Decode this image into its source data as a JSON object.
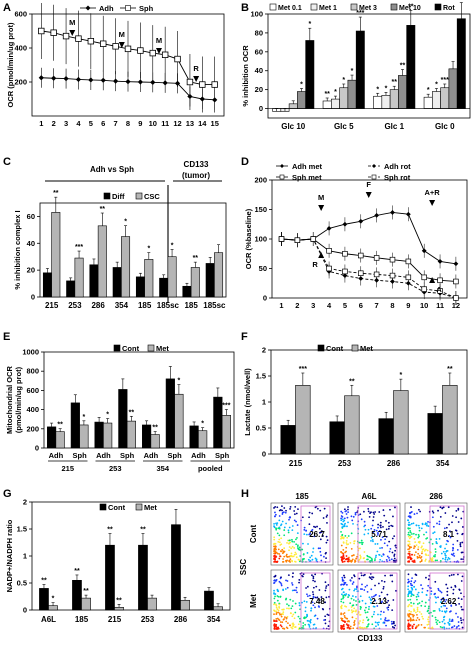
{
  "chart_data": [
    {
      "panel": "A",
      "type": "line",
      "ylabel": "OCR (pmol/min/ug prot)",
      "x": [
        1,
        2,
        3,
        4,
        5,
        6,
        7,
        8,
        9,
        10,
        11,
        12,
        13,
        14,
        15
      ],
      "ylim": [
        0,
        600
      ],
      "yticks": [
        200,
        400,
        600
      ],
      "series": [
        {
          "name": "Adh",
          "values": [
            225,
            222,
            220,
            215,
            212,
            210,
            205,
            202,
            200,
            198,
            195,
            192,
            115,
            100,
            95
          ]
        },
        {
          "name": "Sph",
          "values": [
            500,
            490,
            470,
            455,
            440,
            425,
            410,
            395,
            385,
            370,
            360,
            335,
            200,
            185,
            185
          ]
        }
      ],
      "annotations": [
        "M",
        "M",
        "M",
        "R"
      ]
    },
    {
      "panel": "B",
      "type": "bar",
      "ylabel": "% inhibition OCR",
      "categories": [
        "Glc 10",
        "Glc 5",
        "Glc 1",
        "Glc 0"
      ],
      "ylim": [
        -10,
        100
      ],
      "yticks": [
        0,
        20,
        40,
        60,
        80,
        100
      ],
      "series": [
        {
          "name": "Met 0.1",
          "values": [
            -3,
            8,
            13,
            12
          ]
        },
        {
          "name": "Met 1",
          "values": [
            -3,
            10,
            14,
            18
          ]
        },
        {
          "name": "Met 3",
          "values": [
            5,
            22,
            20,
            22
          ]
        },
        {
          "name": "Met 10",
          "values": [
            18,
            30,
            35,
            42
          ]
        },
        {
          "name": "Rot",
          "values": [
            72,
            82,
            88,
            95
          ]
        }
      ]
    },
    {
      "panel": "C",
      "type": "bar",
      "title": "Adh vs Sph",
      "title2": "CD133",
      "title2b": "(tumor)",
      "ylabel": "% inhibition complex I",
      "categories": [
        "215",
        "253",
        "286",
        "354",
        "185",
        "185sc",
        "185",
        "185sc"
      ],
      "ylim": [
        0,
        70
      ],
      "yticks": [
        0,
        20,
        40,
        60
      ],
      "series": [
        {
          "name": "Diff",
          "values": [
            18,
            12,
            24,
            22,
            15,
            14,
            8,
            25
          ]
        },
        {
          "name": "CSC",
          "values": [
            63,
            29,
            53,
            45,
            28,
            30,
            22,
            33
          ]
        }
      ]
    },
    {
      "panel": "D",
      "type": "line",
      "ylabel": "OCR (%baseline)",
      "x": [
        1,
        2,
        3,
        4,
        5,
        6,
        7,
        8,
        9,
        10,
        11,
        12
      ],
      "ylim": [
        0,
        200
      ],
      "yticks": [
        0,
        50,
        100,
        150,
        200
      ],
      "series": [
        {
          "name": "Adh met",
          "values": [
            100,
            98,
            100,
            118,
            125,
            130,
            140,
            145,
            142,
            80,
            62,
            58
          ]
        },
        {
          "name": "Adh rot",
          "values": [
            100,
            98,
            100,
            45,
            38,
            33,
            30,
            28,
            25,
            10,
            8,
            0
          ]
        },
        {
          "name": "Sph met",
          "values": [
            100,
            98,
            100,
            80,
            75,
            72,
            68,
            65,
            62,
            35,
            30,
            28
          ]
        },
        {
          "name": "Sph rot",
          "values": [
            100,
            98,
            100,
            50,
            45,
            42,
            40,
            38,
            35,
            15,
            12,
            0
          ]
        }
      ],
      "annotations": [
        "M",
        "F",
        "A+R",
        "R",
        "A"
      ]
    },
    {
      "panel": "E",
      "type": "bar",
      "ylabel": "Mitochondrial OCR",
      "ylabel2": "(pmol/min/ug prot)",
      "categories": [
        "Adh",
        "Sph",
        "Adh",
        "Sph",
        "Adh",
        "Sph",
        "Adh",
        "Sph"
      ],
      "groups": [
        "215",
        "253",
        "354",
        "pooled"
      ],
      "ylim": [
        0,
        1000
      ],
      "yticks": [
        0,
        200,
        400,
        600,
        800,
        1000
      ],
      "series": [
        {
          "name": "Cont",
          "values": [
            220,
            470,
            270,
            610,
            240,
            720,
            230,
            530
          ]
        },
        {
          "name": "Met",
          "values": [
            170,
            240,
            260,
            280,
            140,
            560,
            180,
            340
          ]
        }
      ]
    },
    {
      "panel": "F",
      "type": "bar",
      "ylabel": "Lactate (nmol/well)",
      "categories": [
        "215",
        "253",
        "286",
        "354"
      ],
      "ylim": [
        0,
        2
      ],
      "yticks": [
        0,
        0.5,
        1,
        1.5,
        2
      ],
      "series": [
        {
          "name": "Cont",
          "values": [
            0.55,
            0.62,
            0.68,
            0.78
          ]
        },
        {
          "name": "Met",
          "values": [
            1.32,
            1.12,
            1.22,
            1.32
          ]
        }
      ]
    },
    {
      "panel": "G",
      "type": "bar",
      "ylabel": "NADP+/NADPH ratio",
      "categories": [
        "A6L",
        "185",
        "215",
        "253",
        "286",
        "354"
      ],
      "ylim": [
        0,
        2
      ],
      "yticks": [
        0,
        0.5,
        1,
        1.5,
        2
      ],
      "series": [
        {
          "name": "Cont",
          "values": [
            0.4,
            0.55,
            1.2,
            1.2,
            1.58,
            0.35
          ]
        },
        {
          "name": "Met",
          "values": [
            0.08,
            0.22,
            0.05,
            0.22,
            0.18,
            0.06
          ]
        }
      ]
    },
    {
      "panel": "H",
      "type": "scatter",
      "column_labels": [
        "185",
        "A6L",
        "286"
      ],
      "row_labels": [
        "Cont",
        "Met"
      ],
      "values": [
        [
          "26.7",
          "5.71",
          "8.1"
        ],
        [
          "7.48",
          "2.13",
          "2.62"
        ]
      ],
      "ylabel": "SSC",
      "xlabel": "CD133"
    }
  ],
  "stars": {
    "B": [
      "*",
      "*",
      "**",
      "*",
      "*",
      "*",
      "***",
      "*",
      "*",
      "**",
      "**",
      "**",
      "*",
      "*",
      "***"
    ],
    "C": [
      "**",
      "***",
      "**",
      "*",
      "*",
      "*",
      "**"
    ],
    "E": [
      "**",
      "*",
      "*",
      "**",
      "**",
      "*",
      "*",
      "***"
    ],
    "F": [
      "***",
      "**",
      "*",
      "**"
    ],
    "G": [
      "**",
      "*",
      "**",
      "**",
      "**",
      "**",
      "**"
    ]
  },
  "colors": {
    "black": "#000000",
    "gray": "#a9a9a9",
    "white": "#ffffff"
  }
}
